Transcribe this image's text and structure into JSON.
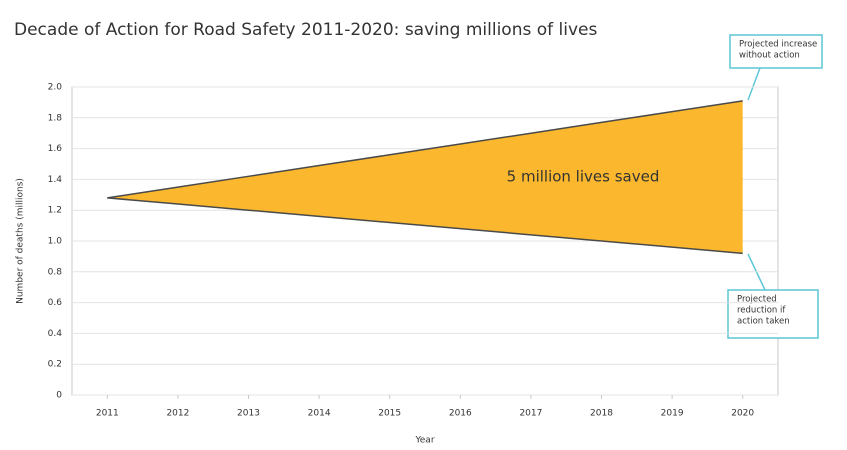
{
  "chart_data": {
    "type": "area-between",
    "title": "Decade of Action for Road Safety 2011-2020: saving millions of lives",
    "x_label": "Year",
    "y_label": "Number of deaths (millions)",
    "x": [
      2011,
      2012,
      2013,
      2014,
      2015,
      2016,
      2017,
      2018,
      2019,
      2020
    ],
    "series": [
      {
        "color": "#4a4a4a",
        "values": [
          1.28,
          1.35,
          1.42,
          1.49,
          1.56,
          1.63,
          1.7,
          1.77,
          1.84,
          1.91
        ]
      },
      {
        "color": "#4a4a4a",
        "values": [
          1.28,
          1.24,
          1.2,
          1.16,
          1.12,
          1.08,
          1.04,
          1.0,
          0.96,
          0.92
        ]
      }
    ],
    "fill_color": "#fbb82e",
    "xlim": [
      2010.5,
      2020.5
    ],
    "xticks": [
      2011,
      2012,
      2013,
      2014,
      2015,
      2016,
      2017,
      2018,
      2019,
      2020
    ],
    "ylim": [
      0,
      2
    ],
    "yticks": [
      0,
      0.2,
      0.4,
      0.6,
      0.8,
      {
        "value": 1,
        "label": "1.0"
      },
      1.2,
      1.4,
      1.6,
      1.8,
      {
        "value": 2,
        "label": "2.0"
      }
    ],
    "grid": true,
    "fill_label": "5 million lives saved",
    "callouts": [
      {
        "lines": [
          "Projected increase",
          "without action"
        ]
      },
      {
        "lines": [
          "Projected",
          "reduction if",
          "action taken"
        ]
      }
    ]
  }
}
